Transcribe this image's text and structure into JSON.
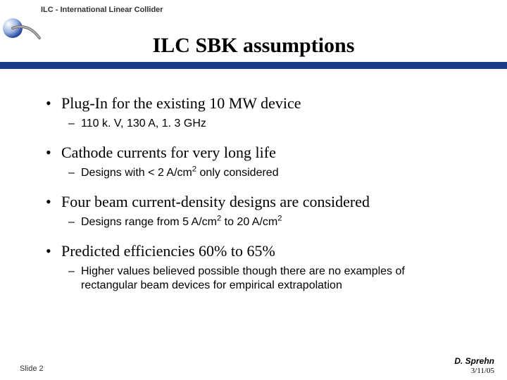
{
  "header": {
    "label": "ILC - International Linear Collider",
    "label_fontsize": 11,
    "label_color": "#333333"
  },
  "title": {
    "text": "ILC SBK assumptions",
    "fontsize": 30,
    "color": "#000000"
  },
  "bluebar_color": "#1b3b86",
  "background_color": "#ffffff",
  "bullets": [
    {
      "text": "Plug-In for the existing 10 MW device",
      "subs": [
        {
          "plain": "110 k. V, 130 A, 1. 3 GHz"
        }
      ]
    },
    {
      "text": "Cathode currents for very long life",
      "subs": [
        {
          "html": "Designs with < 2 A/cm<sup>2</sup> only considered"
        }
      ]
    },
    {
      "text": "Four beam current-density designs are considered",
      "subs": [
        {
          "html": "Designs range from 5 A/cm<sup>2</sup> to 20 A/cm<sup>2</sup>"
        }
      ]
    },
    {
      "text": "Predicted efficiencies 60% to 65%",
      "subs": [
        {
          "plain": "Higher values believed possible though there are no examples of rectangular beam devices for empirical extrapolation"
        }
      ]
    }
  ],
  "bullet_style": {
    "main_fontfamily": "Times New Roman",
    "main_fontsize": 22,
    "sub_fontfamily": "Arial",
    "sub_fontsize": 16,
    "main_marker": "•",
    "sub_marker": "–"
  },
  "footer": {
    "left": "Slide 2",
    "right_name": "D. Sprehn",
    "right_date": "3/11/05"
  }
}
